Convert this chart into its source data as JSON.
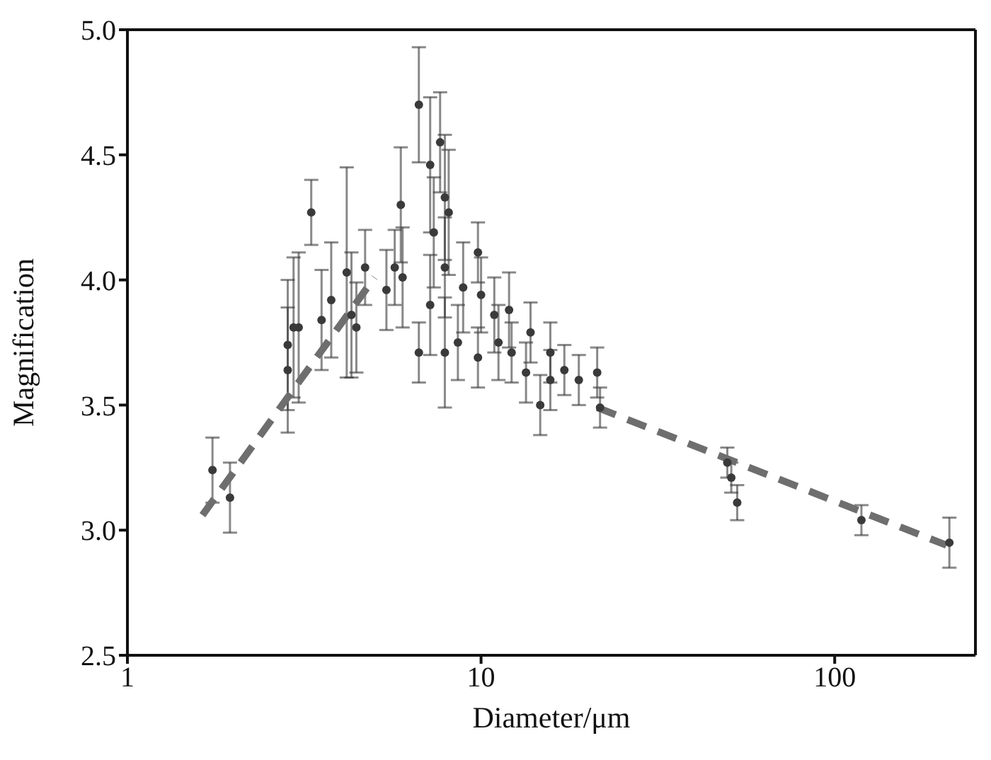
{
  "chart_data": {
    "type": "scatter",
    "xlabel": "Diameter/μm",
    "ylabel": "Magnification",
    "log": "x",
    "xlim": [
      1,
      250
    ],
    "xticks": [
      1,
      10,
      100
    ],
    "ylim": [
      2.5,
      5.0
    ],
    "yticks": [
      {
        "value": 2.5,
        "label": "2.5"
      },
      {
        "value": 3,
        "label": "3.0"
      },
      {
        "value": 3.5,
        "label": "3.5"
      },
      {
        "value": 4,
        "label": "4.0"
      },
      {
        "value": 4.5,
        "label": "4.5"
      },
      {
        "value": 5,
        "label": "5.0"
      }
    ],
    "grid": false,
    "series": [
      {
        "color": "#3a3a3a",
        "marker": "circle",
        "x": [
          1.74,
          1.95,
          2.84,
          2.84,
          2.95,
          3.05,
          3.31,
          3.54,
          3.77,
          4.17,
          4.3,
          4.44,
          4.7,
          5.4,
          5.7,
          5.93,
          6.0,
          6.67,
          6.67,
          7.18,
          7.18,
          7.35,
          7.66,
          7.9,
          7.9,
          7.9,
          8.1,
          8.6,
          8.9,
          9.8,
          9.8,
          10,
          10.9,
          11.2,
          12,
          12.2,
          13.4,
          13.8,
          14.7,
          15.7,
          15.7,
          17.2,
          18.9,
          21.3,
          21.7,
          49.7,
          51,
          53,
          119,
          211
        ],
        "values": [
          3.24,
          3.13,
          3.74,
          3.64,
          3.81,
          3.81,
          4.27,
          3.84,
          3.92,
          4.03,
          3.86,
          3.81,
          4.05,
          3.96,
          4.05,
          4.3,
          4.01,
          4.7,
          3.71,
          4.46,
          3.9,
          4.19,
          4.55,
          4.33,
          4.05,
          3.71,
          4.27,
          3.75,
          3.97,
          4.11,
          3.69,
          3.94,
          3.86,
          3.75,
          3.88,
          3.71,
          3.63,
          3.79,
          3.5,
          3.71,
          3.6,
          3.64,
          3.6,
          3.63,
          3.49,
          3.27,
          3.21,
          3.11,
          3.04,
          2.95
        ],
        "errors": [
          0.13,
          0.14,
          0.26,
          0.25,
          0.28,
          0.3,
          0.13,
          0.2,
          0.23,
          0.42,
          0.25,
          0.18,
          0.15,
          0.16,
          0.15,
          0.23,
          0.2,
          0.23,
          0.12,
          0.27,
          0.2,
          0.22,
          0.2,
          0.25,
          0.2,
          0.22,
          0.25,
          0.15,
          0.18,
          0.12,
          0.12,
          0.15,
          0.15,
          0.15,
          0.15,
          0.12,
          0.12,
          0.12,
          0.12,
          0.12,
          0.12,
          0.1,
          0.1,
          0.1,
          0.08,
          0.06,
          0.06,
          0.07,
          0.06,
          0.1
        ]
      },
      {
        "type": "line",
        "color": "#6e6e6e",
        "line_style": "dashed",
        "marker": "none",
        "x": [
          1.63,
          5.0
        ],
        "values": [
          3.06,
          4.01
        ]
      },
      {
        "type": "line",
        "color": "#6e6e6e",
        "line_style": "dashed",
        "marker": "none",
        "x": [
          21.3,
          207
        ],
        "values": [
          3.49,
          2.94
        ]
      }
    ]
  }
}
